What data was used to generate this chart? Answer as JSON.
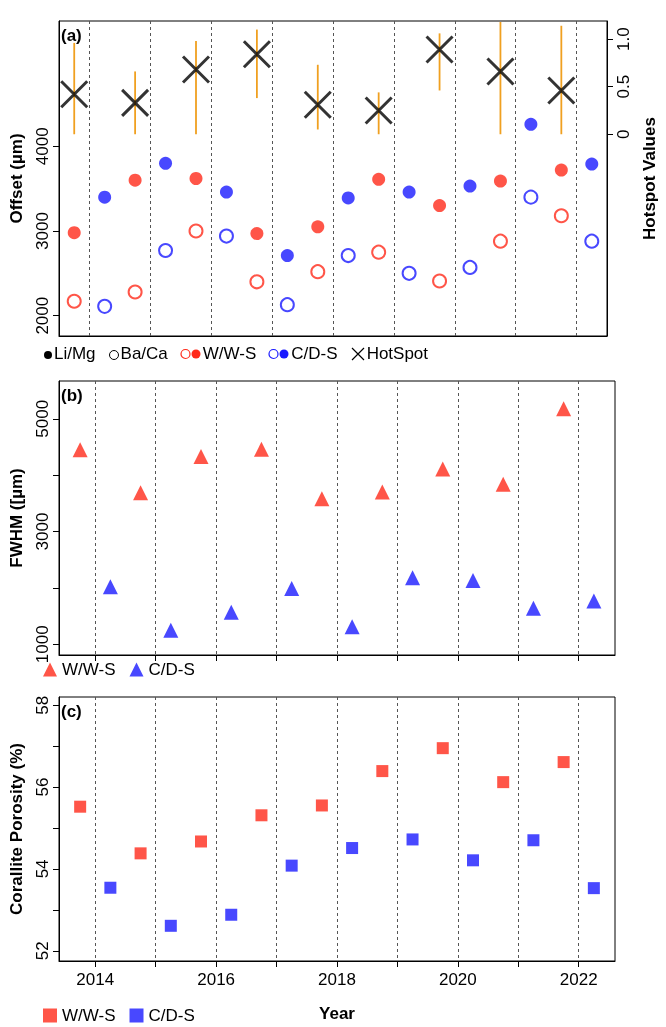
{
  "chart_data": [
    {
      "type": "scatter",
      "ylabel": "Offset (µm)",
      "y2label": "Hotspot Values",
      "annotations": [
        "(a)",
        "Li/Mg",
        "Ba/Ca"
      ],
      "marker": "circle",
      "grid": "x",
      "legend": "bottom left",
      "tick_labels": "y,y2",
      "categories": [
        null,
        null,
        null,
        null,
        null,
        null,
        null,
        null,
        null,
        null,
        null,
        null,
        null,
        null,
        null,
        null,
        null,
        null
      ],
      "ylim": [
        1760,
        5480
      ],
      "yticks": [
        2000,
        3000,
        4000
      ],
      "y2lim": [
        -2.12,
        1.19
      ],
      "y2ticks": [
        0,
        0.5,
        {
          "value": 1,
          "label": "1.0"
        }
      ],
      "series": [
        {
          "name": "W/W-S",
          "color": "#ff2a1a",
          "values": [
            2980,
            null,
            3600,
            null,
            3620,
            null,
            2970,
            null,
            3050,
            null,
            3610,
            null,
            3300,
            null,
            3590,
            null,
            3720,
            null
          ]
        },
        {
          "color": "#ff2a1a",
          "marker": "circle-open",
          "values": [
            2170,
            null,
            2280,
            null,
            3000,
            null,
            2400,
            null,
            2520,
            null,
            2750,
            null,
            2410,
            null,
            2880,
            null,
            3180,
            null
          ]
        },
        {
          "name": "C/D-S",
          "color": "#1a1aff",
          "values": [
            null,
            3400,
            null,
            3800,
            null,
            3460,
            null,
            2710,
            null,
            3390,
            null,
            3460,
            null,
            3530,
            null,
            4260,
            null,
            3790
          ]
        },
        {
          "color": "#1a1aff",
          "marker": "circle-open",
          "values": [
            null,
            2110,
            null,
            2770,
            null,
            2940,
            null,
            2130,
            null,
            2710,
            null,
            2500,
            null,
            2570,
            null,
            3400,
            null,
            2880
          ]
        },
        {
          "name": "HotSpot",
          "color": "#000000",
          "marker": "cross",
          "axis": "y2",
          "values": [
            0.42,
            null,
            0.33,
            null,
            0.68,
            null,
            0.84,
            null,
            0.31,
            null,
            0.25,
            null,
            0.89,
            null,
            0.66,
            null,
            0.46,
            null
          ],
          "errors": [
            [
              0,
              0.96
            ],
            null,
            [
              0,
              0.66
            ],
            null,
            [
              0,
              0.98
            ],
            null,
            [
              0.38,
              1.1
            ],
            null,
            [
              0.05,
              0.73
            ],
            null,
            [
              0,
              0.44
            ],
            null,
            [
              0.46,
              1.06
            ],
            null,
            [
              0,
              1.18
            ],
            null,
            [
              0,
              1.14
            ],
            null
          ]
        }
      ]
    },
    {
      "type": "scatter",
      "ylabel": "FWHM ([µm)",
      "annotations": [
        "(b)"
      ],
      "marker": "triangle",
      "grid": "x",
      "legend": "bottom left",
      "tick_labels": "y",
      "xlim": [
        2013.4,
        2022.6
      ],
      "xticks": [
        {
          "value": 2014,
          "label": null
        },
        {
          "value": 2015,
          "label": null
        },
        {
          "value": 2016,
          "label": null
        },
        {
          "value": 2017,
          "label": null
        },
        {
          "value": 2018,
          "label": null
        },
        {
          "value": 2019,
          "label": null
        },
        {
          "value": 2020,
          "label": null
        },
        {
          "value": 2021,
          "label": null
        },
        {
          "value": 2022,
          "label": null
        }
      ],
      "ylim": [
        810,
        5670
      ],
      "yticks": [
        1000,
        {
          "value": 2000,
          "label": null
        },
        3000,
        {
          "value": 4000,
          "label": null
        },
        5000
      ],
      "series": [
        {
          "name": "W/W-S",
          "color": "#ff2a1a",
          "x": [
            2013.75,
            2014.75,
            2015.75,
            2016.75,
            2017.75,
            2018.75,
            2019.75,
            2020.75,
            2021.75
          ],
          "values": [
            4450,
            3690,
            4330,
            4460,
            3580,
            3700,
            4110,
            3840,
            5180
          ]
        },
        {
          "name": "C/D-S",
          "color": "#1a1aff",
          "x": [
            2014.25,
            2015.25,
            2016.25,
            2017.25,
            2018.25,
            2019.25,
            2020.25,
            2021.25,
            2022.25
          ],
          "values": [
            2020,
            1250,
            1570,
            1990,
            1310,
            2180,
            2130,
            1640,
            1770
          ]
        }
      ]
    },
    {
      "type": "scatter",
      "xlabel": "Year",
      "ylabel": "Corallite Porosity (%)",
      "annotations": [
        "(c)"
      ],
      "marker": "square",
      "grid": "x",
      "legend": "bottom left",
      "xlim": [
        2013.4,
        2022.6
      ],
      "xticks": [
        2014,
        {
          "value": 2015,
          "label": null
        },
        2016,
        {
          "value": 2017,
          "label": null
        },
        2018,
        {
          "value": 2019,
          "label": null
        },
        2020,
        {
          "value": 2021,
          "label": null
        },
        2022
      ],
      "ylim": [
        51.75,
        58.2
      ],
      "yticks": [
        52,
        {
          "value": 53,
          "label": null
        },
        54,
        {
          "value": 55,
          "label": null
        },
        56,
        {
          "value": 57,
          "label": null
        },
        58
      ],
      "series": [
        {
          "name": "W/W-S",
          "color": "#ff2a1a",
          "x": [
            2013.75,
            2014.75,
            2015.75,
            2016.75,
            2017.75,
            2018.75,
            2019.75,
            2020.75,
            2021.75
          ],
          "values": [
            55.52,
            54.38,
            54.67,
            55.31,
            55.55,
            56.39,
            56.95,
            56.12,
            56.61
          ]
        },
        {
          "name": "C/D-S",
          "color": "#1a1aff",
          "x": [
            2014.25,
            2015.25,
            2016.25,
            2017.25,
            2018.25,
            2019.25,
            2020.25,
            2021.25,
            2022.25
          ],
          "values": [
            53.54,
            52.61,
            52.88,
            54.08,
            54.51,
            54.72,
            54.21,
            54.7,
            53.53
          ]
        }
      ]
    }
  ]
}
